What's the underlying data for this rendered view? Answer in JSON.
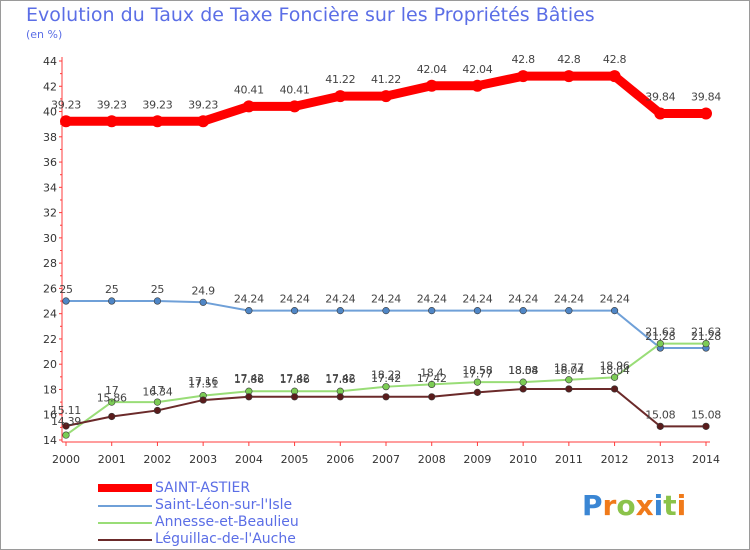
{
  "chart_data": {
    "type": "line",
    "title": "Evolution du Taux de Taxe Foncière sur les Propriétés Bâties",
    "ylabel": "(en %)",
    "xlabel": "",
    "x": [
      "2000",
      "2001",
      "2002",
      "2003",
      "2004",
      "2005",
      "2006",
      "2007",
      "2008",
      "2009",
      "2010",
      "2011",
      "2012",
      "2013",
      "2014"
    ],
    "ylim": [
      14,
      44
    ],
    "yticks": [
      14,
      16,
      18,
      20,
      22,
      24,
      26,
      28,
      30,
      32,
      34,
      36,
      38,
      40,
      42,
      44
    ],
    "grid": false,
    "legend_position": "bottom-left",
    "series": [
      {
        "name": "SAINT-ASTIER",
        "color": "#ff0000",
        "values": [
          39.23,
          39.23,
          39.23,
          39.23,
          40.41,
          40.41,
          41.22,
          41.22,
          42.04,
          42.04,
          42.8,
          42.8,
          42.8,
          39.84,
          39.84
        ],
        "labels": [
          "39.23",
          "39.23",
          "39.23",
          "39.23",
          "40.41",
          "40.41",
          "41.22",
          "41.22",
          "42.04",
          "42.04",
          "42.8",
          "42.8",
          "42.8",
          "39.84",
          "39.84"
        ]
      },
      {
        "name": "Saint-Léon-sur-l'Isle",
        "color": "#6fa0d8",
        "values": [
          25,
          25,
          25,
          24.9,
          24.24,
          24.24,
          24.24,
          24.24,
          24.24,
          24.24,
          24.24,
          24.24,
          24.24,
          21.28,
          21.28
        ],
        "labels": [
          "25",
          "25",
          "25",
          "24.9",
          "24.24",
          "24.24",
          "24.24",
          "24.24",
          "24.24",
          "24.24",
          "24.24",
          "24.24",
          "24.24",
          "21.28",
          "21.28"
        ]
      },
      {
        "name": "Annesse-et-Beaulieu",
        "color": "#99dd77",
        "values": [
          14.39,
          17,
          17,
          17.51,
          17.86,
          17.86,
          17.86,
          18.22,
          18.4,
          18.58,
          18.58,
          18.77,
          18.96,
          21.63,
          21.63
        ],
        "labels": [
          "14.39",
          "17",
          "17",
          "17.51",
          "17.86",
          "17.86",
          "17.86",
          "18.22",
          "18.4",
          "18.58",
          "18.58",
          "18.77",
          "18.96",
          "21.63",
          "21.63"
        ]
      },
      {
        "name": "Léguillac-de-l'Auche",
        "color": "#6b2a2a",
        "values": [
          15.11,
          15.86,
          16.34,
          17.16,
          17.42,
          17.42,
          17.42,
          17.42,
          17.42,
          17.77,
          18.04,
          18.04,
          18.04,
          15.08,
          15.08
        ],
        "labels": [
          "15.11",
          "15.86",
          "16.34",
          "17.16",
          "17.42",
          "17.42",
          "17.42",
          "17.42",
          "17.42",
          "17.77",
          "18.04",
          "18.04",
          "18.04",
          "15.08",
          "15.08"
        ]
      }
    ]
  },
  "logo": {
    "text": "Proxiti",
    "letters": [
      "P",
      "r",
      "o",
      "x",
      "i",
      "t",
      "i"
    ],
    "colors": [
      "#3a86d4",
      "#f07a1a",
      "#8bc34a",
      "#f07a1a",
      "#3a86d4",
      "#8bc34a",
      "#f07a1a"
    ]
  }
}
